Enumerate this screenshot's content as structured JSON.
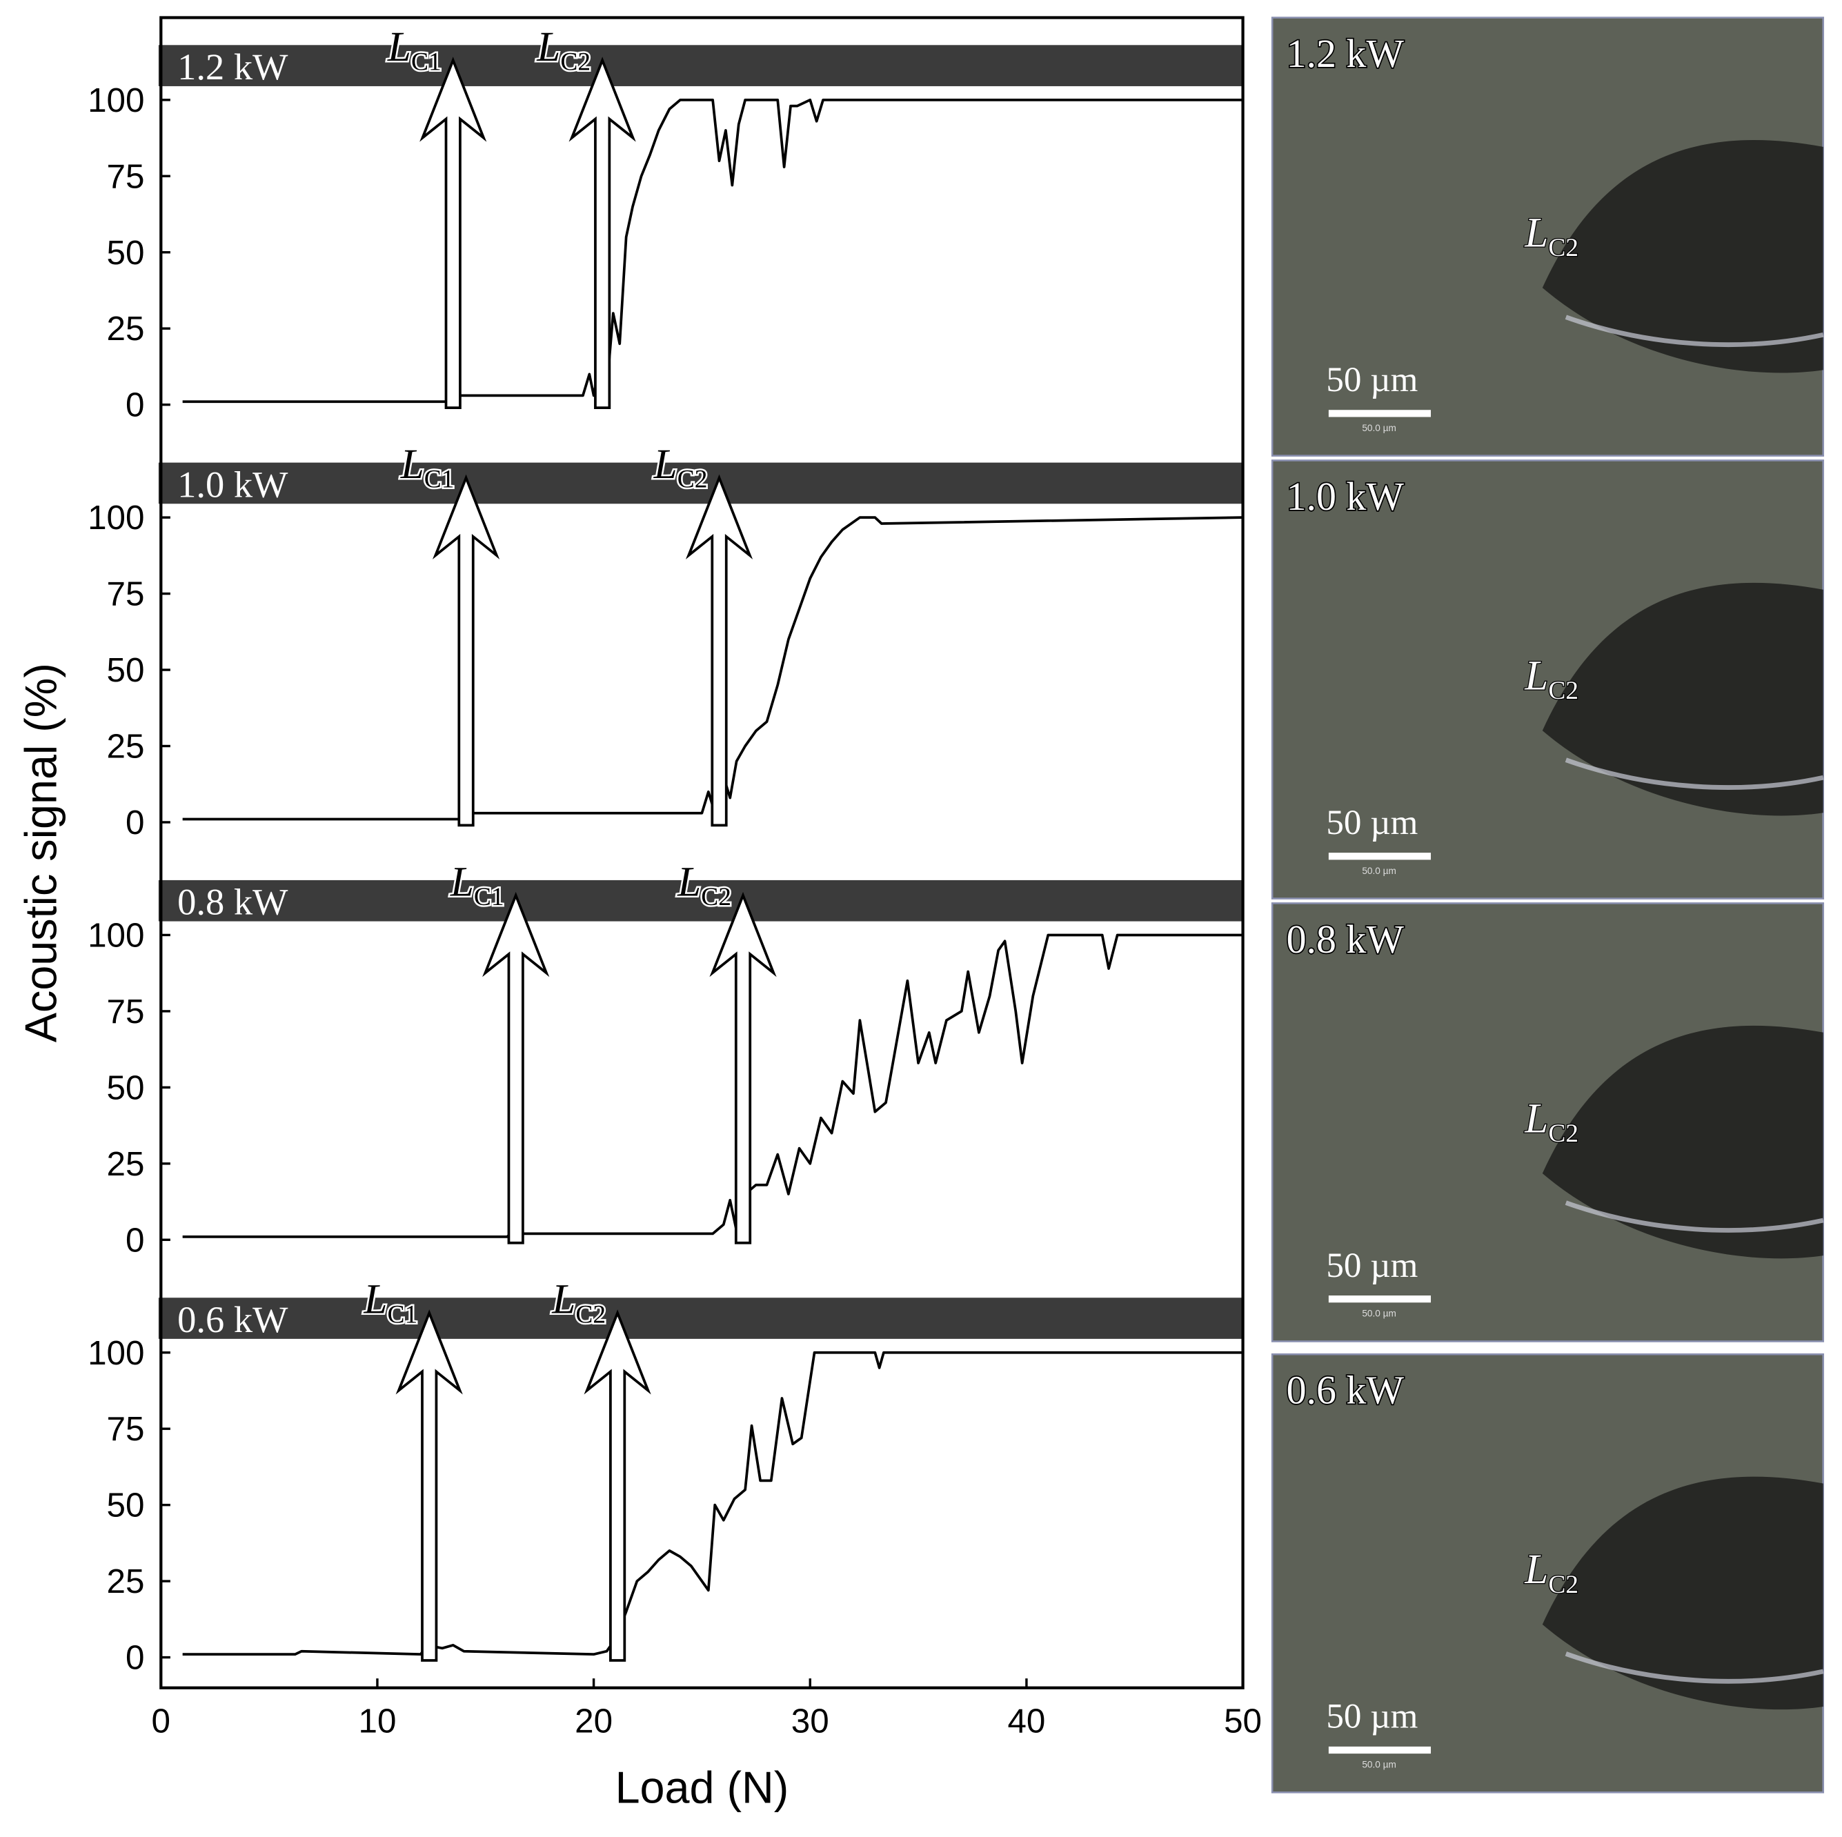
{
  "chart_data": [
    {
      "type": "line",
      "panel_label": "1.2 kW",
      "y_label": "Acoustic signal (%)",
      "color": "#000000",
      "xlim": [
        0,
        50
      ],
      "ylim": [
        -10,
        127
      ],
      "yticks": [
        0,
        25,
        50,
        75,
        100
      ],
      "x": [
        1,
        13.3,
        13.6,
        19.5,
        19.8,
        20.0,
        20.3,
        20.6,
        20.9,
        21.2,
        21.5,
        21.8,
        22.2,
        22.6,
        23.0,
        23.5,
        24.0,
        25.5,
        25.8,
        26.1,
        26.4,
        26.7,
        27.0,
        28.5,
        28.8,
        29.1,
        29.4,
        30.0,
        30.3,
        30.6,
        50
      ],
      "values": [
        1,
        1,
        3,
        3,
        10,
        3,
        15,
        5,
        30,
        20,
        55,
        65,
        75,
        82,
        90,
        97,
        100,
        100,
        80,
        90,
        72,
        92,
        100,
        100,
        78,
        98,
        98,
        100,
        93,
        100,
        100
      ],
      "annotations": [
        {
          "text": "L",
          "sub": "C1",
          "x": 13.5
        },
        {
          "text": "L",
          "sub": "C2",
          "x": 20.4
        }
      ]
    },
    {
      "type": "line",
      "panel_label": "1.0 kW",
      "color": "#000000",
      "xlim": [
        0,
        50
      ],
      "ylim": [
        -10,
        127
      ],
      "yticks": [
        0,
        25,
        50,
        75,
        100
      ],
      "x": [
        1,
        13.9,
        14.2,
        25.0,
        25.3,
        25.6,
        26.0,
        26.3,
        26.6,
        27.0,
        27.5,
        28.0,
        28.5,
        29.0,
        29.5,
        30.0,
        30.5,
        31.0,
        31.5,
        32.3,
        33.0,
        33.3,
        50
      ],
      "values": [
        1,
        1,
        3,
        3,
        10,
        3,
        15,
        8,
        20,
        25,
        30,
        33,
        45,
        60,
        70,
        80,
        87,
        92,
        96,
        100,
        100,
        98,
        100
      ],
      "annotations": [
        {
          "text": "L",
          "sub": "C1",
          "x": 14.1
        },
        {
          "text": "L",
          "sub": "C2",
          "x": 25.8
        }
      ]
    },
    {
      "type": "line",
      "panel_label": "0.8 kW",
      "color": "#000000",
      "xlim": [
        0,
        50
      ],
      "ylim": [
        -10,
        127
      ],
      "yticks": [
        0,
        25,
        50,
        75,
        100
      ],
      "x": [
        1,
        16.0,
        16.3,
        16.7,
        25.5,
        26.0,
        26.3,
        26.6,
        27.0,
        27.5,
        28.0,
        28.5,
        29.0,
        29.5,
        30.0,
        30.5,
        31.0,
        31.5,
        32.0,
        32.3,
        32.7,
        33.0,
        33.5,
        34.0,
        34.5,
        35.0,
        35.5,
        35.8,
        36.3,
        37.0,
        37.3,
        37.8,
        38.3,
        38.7,
        39.0,
        39.5,
        39.8,
        40.3,
        41.0,
        43.5,
        43.8,
        44.2,
        50
      ],
      "values": [
        1,
        1,
        3,
        2,
        2,
        5,
        13,
        3,
        15,
        18,
        18,
        28,
        15,
        30,
        25,
        40,
        35,
        52,
        48,
        72,
        55,
        42,
        45,
        65,
        85,
        58,
        68,
        58,
        72,
        75,
        88,
        68,
        80,
        95,
        98,
        75,
        58,
        80,
        100,
        100,
        89,
        100,
        100
      ],
      "annotations": [
        {
          "text": "L",
          "sub": "C1",
          "x": 16.4
        },
        {
          "text": "L",
          "sub": "C2",
          "x": 26.9
        }
      ]
    },
    {
      "type": "line",
      "panel_label": "0.6 kW",
      "x_label": "Load (N)",
      "color": "#000000",
      "xlim": [
        0,
        50
      ],
      "ylim": [
        -10,
        127
      ],
      "yticks": [
        0,
        25,
        50,
        75,
        100
      ],
      "xticks": [
        0,
        10,
        20,
        30,
        40,
        50
      ],
      "x": [
        1,
        6.2,
        6.5,
        12,
        12.3,
        13,
        13.5,
        14,
        20.0,
        20.6,
        21.0,
        21.5,
        22,
        22.5,
        23,
        23.5,
        24,
        24.5,
        25,
        25.3,
        25.6,
        26,
        26.5,
        27,
        27.3,
        27.7,
        28.2,
        28.7,
        29.2,
        29.6,
        30.2,
        33,
        33.2,
        33.4,
        50
      ],
      "values": [
        1,
        1,
        2,
        1,
        4,
        3,
        4,
        2,
        1,
        2,
        6,
        15,
        25,
        28,
        32,
        35,
        33,
        30,
        25,
        22,
        50,
        45,
        52,
        55,
        76,
        58,
        58,
        85,
        70,
        72,
        100,
        100,
        95,
        100,
        100
      ],
      "annotations": [
        {
          "text": "L",
          "sub": "C1",
          "x": 12.4
        },
        {
          "text": "L",
          "sub": "C2",
          "x": 21.1
        }
      ]
    }
  ],
  "micrographs": [
    {
      "label": "1.2 kW",
      "marker": {
        "text": "L",
        "sub": "C2"
      },
      "scale_bar": "50 µm",
      "scale_bar_small": "50.0 µm"
    },
    {
      "label": "1.0 kW",
      "marker": {
        "text": "L",
        "sub": "C2"
      },
      "scale_bar": "50 µm",
      "scale_bar_small": "50.0 µm"
    },
    {
      "label": "0.8 kW",
      "marker": {
        "text": "L",
        "sub": "C2"
      },
      "scale_bar": "50 µm",
      "scale_bar_small": "50.0 µm"
    },
    {
      "label": "0.6 kW",
      "marker": {
        "text": "L",
        "sub": "C2"
      },
      "scale_bar": "50 µm",
      "scale_bar_small": "50.0 µm"
    }
  ]
}
